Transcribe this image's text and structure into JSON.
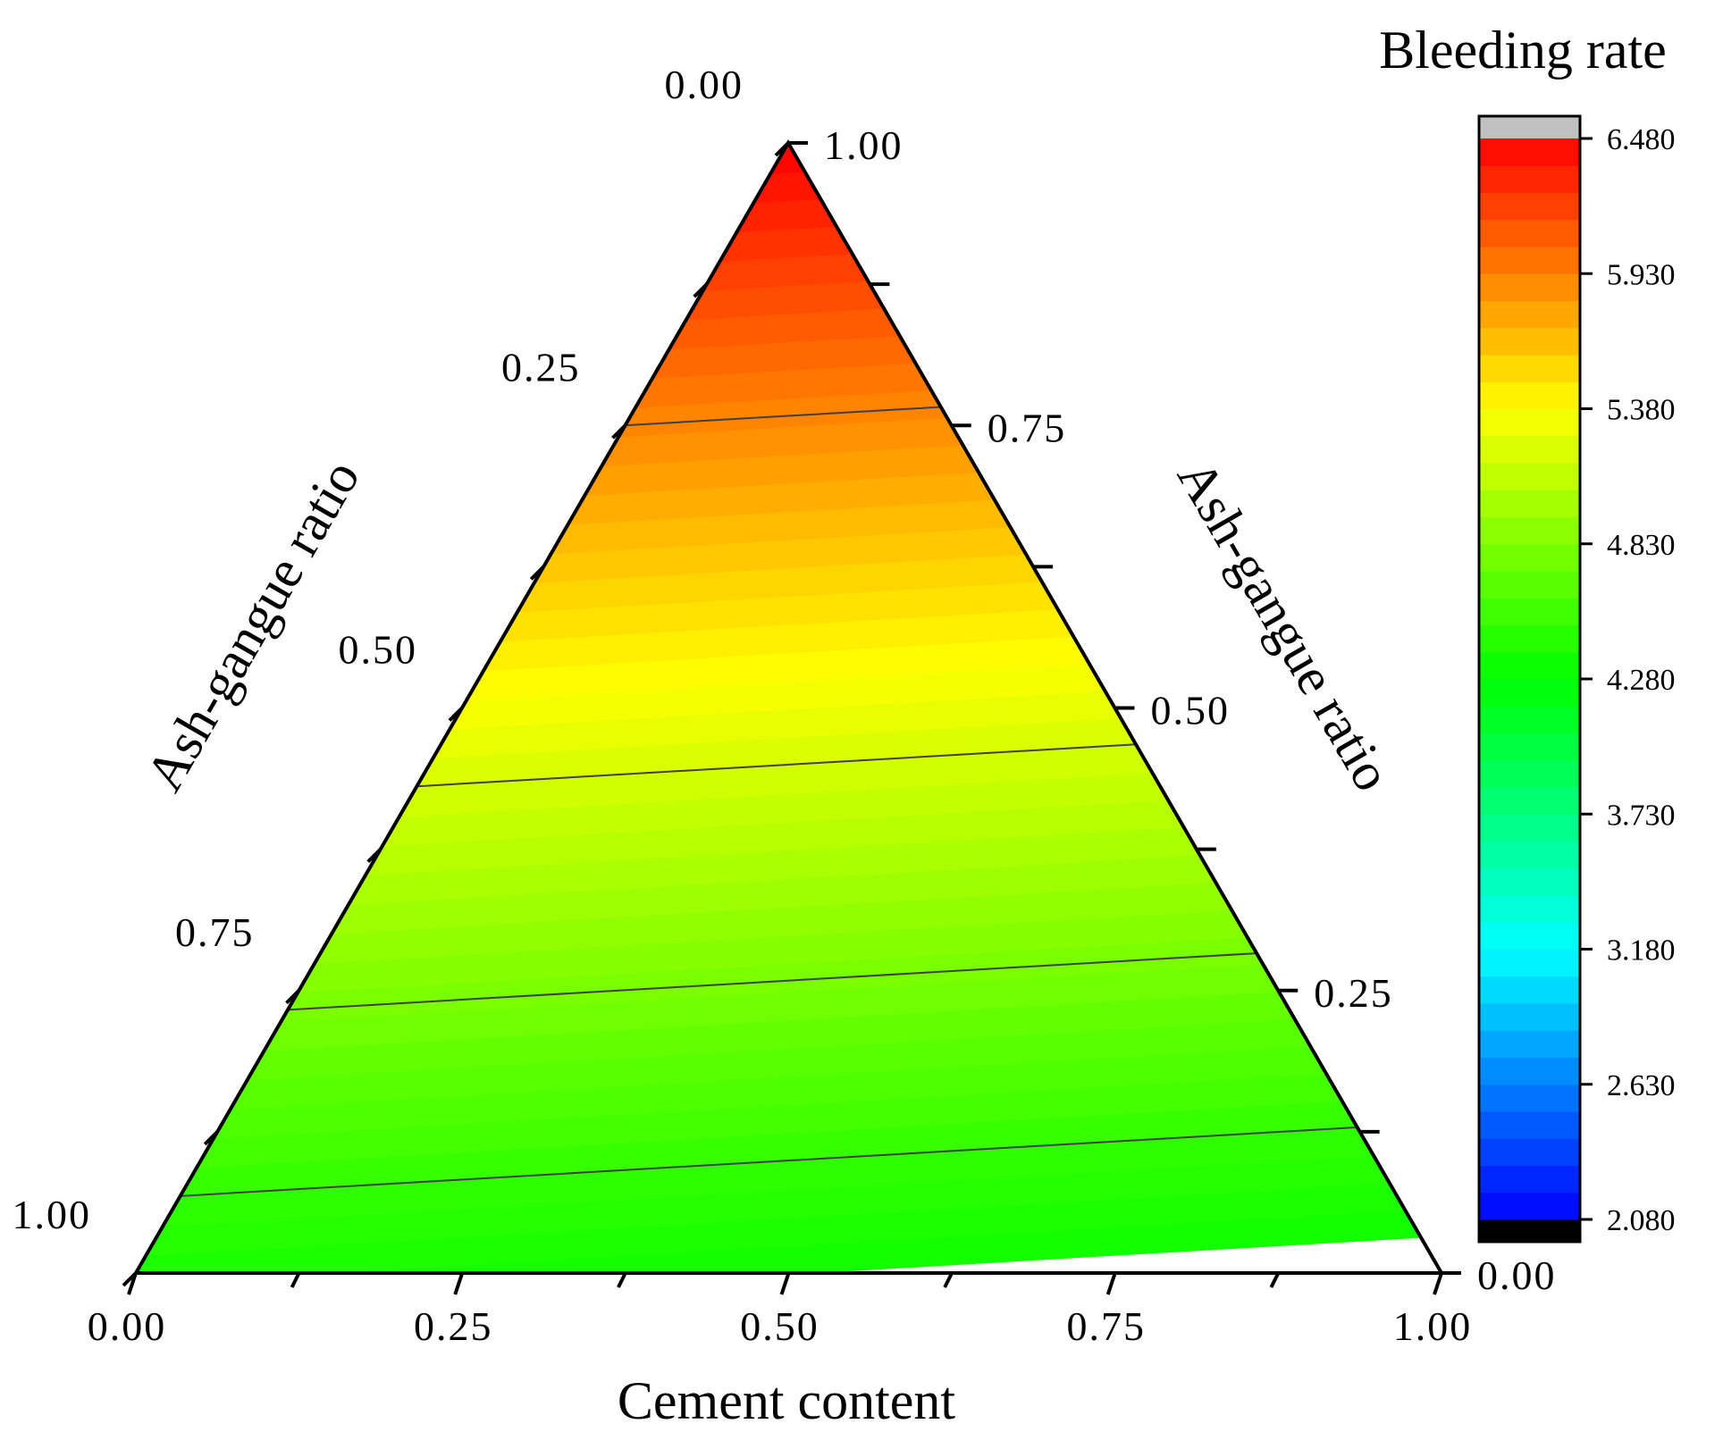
{
  "chart_data": {
    "type": "heatmap",
    "subtype": "ternary-contour",
    "title": "",
    "axes": {
      "bottom": {
        "label": "Cement content",
        "ticks": [
          "0.00",
          "0.25",
          "0.50",
          "0.75",
          "1.00"
        ],
        "tick_values": [
          0,
          0.25,
          0.5,
          0.75,
          1
        ]
      },
      "left": {
        "label": "Ash-gangue ratio",
        "ticks": [
          "0.00",
          "0.25",
          "0.50",
          "0.75",
          "1.00"
        ],
        "tick_values": [
          0,
          0.25,
          0.5,
          0.75,
          1
        ]
      },
      "right": {
        "label": "Ash-gangue ratio",
        "ticks": [
          "1.00",
          "0.75",
          "0.50",
          "0.25",
          "0.00"
        ],
        "tick_values": [
          1,
          0.75,
          0.5,
          0.25,
          0
        ]
      }
    },
    "colorbar": {
      "title": "Bleeding rate",
      "ticks": [
        "6.480",
        "5.930",
        "5.380",
        "4.830",
        "4.280",
        "3.730",
        "3.180",
        "2.630",
        "2.080"
      ],
      "tick_values": [
        6.48,
        5.93,
        5.38,
        4.83,
        4.28,
        3.73,
        3.18,
        2.63,
        2.08
      ],
      "min": 2.08,
      "max": 6.48,
      "above_max_color": "#c0c0c0",
      "below_min_color": "#000000",
      "colors": [
        "#0000ff",
        "#00ffff",
        "#00ff00",
        "#ffff00",
        "#ff8000",
        "#ff0000"
      ],
      "color_stops": [
        2.08,
        3.18,
        4.28,
        5.38,
        5.93,
        6.48
      ]
    },
    "field": {
      "description_values_by_apex_height": true,
      "value_at_base": 4.35,
      "value_at_apex": 6.48,
      "contour_levels": [
        4.5,
        4.8,
        5.2,
        5.9
      ],
      "contour_tilt": 0.06
    }
  }
}
